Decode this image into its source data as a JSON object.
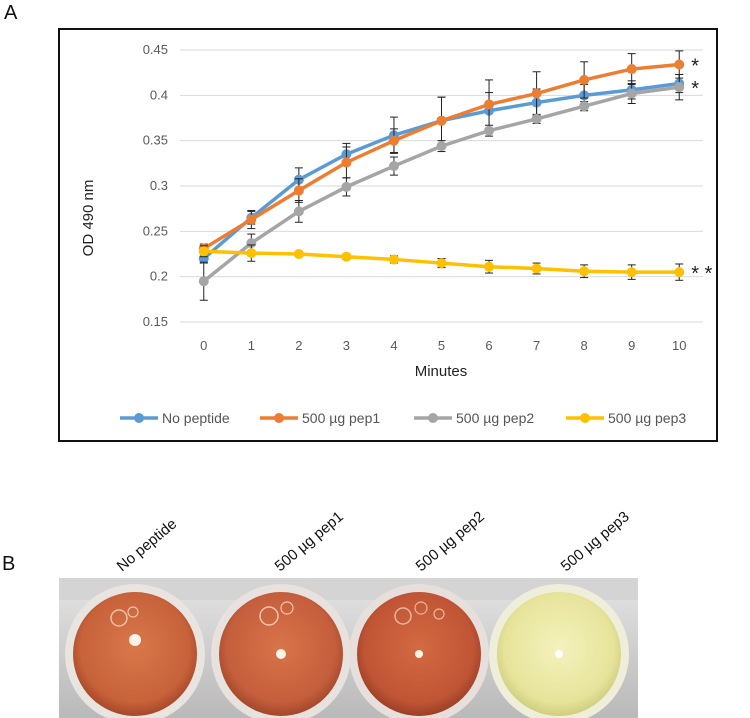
{
  "panels": {
    "a": "A",
    "b": "B"
  },
  "chart_data": {
    "type": "line",
    "title": "",
    "xlabel": "Minutes",
    "ylabel": "OD 490 nm",
    "x": [
      0,
      1,
      2,
      3,
      4,
      5,
      6,
      7,
      8,
      9,
      10
    ],
    "ylim": [
      0.15,
      0.45
    ],
    "yticks": [
      0.15,
      0.2,
      0.25,
      0.3,
      0.35,
      0.4,
      0.45
    ],
    "ytick_labels": [
      "0.15",
      "0.2",
      "0.25",
      "0.3",
      "0.35",
      "0.4",
      "0.45"
    ],
    "grid": true,
    "legend_position": "bottom",
    "series": [
      {
        "name": "No peptide",
        "color": "#5B9BD5",
        "values": [
          0.22,
          0.265,
          0.307,
          0.335,
          0.356,
          0.372,
          0.383,
          0.392,
          0.4,
          0.406,
          0.413
        ],
        "errors": [
          0.005,
          0.007,
          0.013,
          0.012,
          0.02,
          0.026,
          0.02,
          0.015,
          0.012,
          0.01,
          0.01
        ],
        "annotation": ""
      },
      {
        "name": "500 µg pep1",
        "color": "#ED7D31",
        "values": [
          0.231,
          0.263,
          0.295,
          0.326,
          0.35,
          0.372,
          0.39,
          0.402,
          0.417,
          0.429,
          0.434
        ],
        "errors": [
          0.005,
          0.01,
          0.013,
          0.017,
          0.013,
          0.026,
          0.027,
          0.024,
          0.02,
          0.017,
          0.015
        ],
        "annotation": "*"
      },
      {
        "name": "500 µg pep2",
        "color": "#A5A5A5",
        "values": [
          0.195,
          0.237,
          0.272,
          0.299,
          0.322,
          0.344,
          0.361,
          0.374,
          0.388,
          0.402,
          0.409
        ],
        "errors": [
          0.021,
          0.01,
          0.012,
          0.01,
          0.01,
          0.006,
          0.006,
          0.005,
          0.005,
          0.011,
          0.014
        ],
        "annotation": "*"
      },
      {
        "name": "500 µg pep3",
        "color": "#FFC000",
        "values": [
          0.228,
          0.226,
          0.225,
          0.222,
          0.219,
          0.215,
          0.211,
          0.209,
          0.206,
          0.205,
          0.205
        ],
        "errors": [
          0.006,
          0.009,
          0.003,
          0.003,
          0.004,
          0.005,
          0.007,
          0.006,
          0.007,
          0.008,
          0.009
        ],
        "annotation": "* *"
      }
    ]
  },
  "photo": {
    "well_labels": [
      "No peptide",
      "500 µg pep1",
      "500 µg pep2",
      "500 µg pep3"
    ],
    "well_colors": [
      "#c7623a",
      "#c45e3c",
      "#c05535",
      "#e6e49a"
    ]
  }
}
